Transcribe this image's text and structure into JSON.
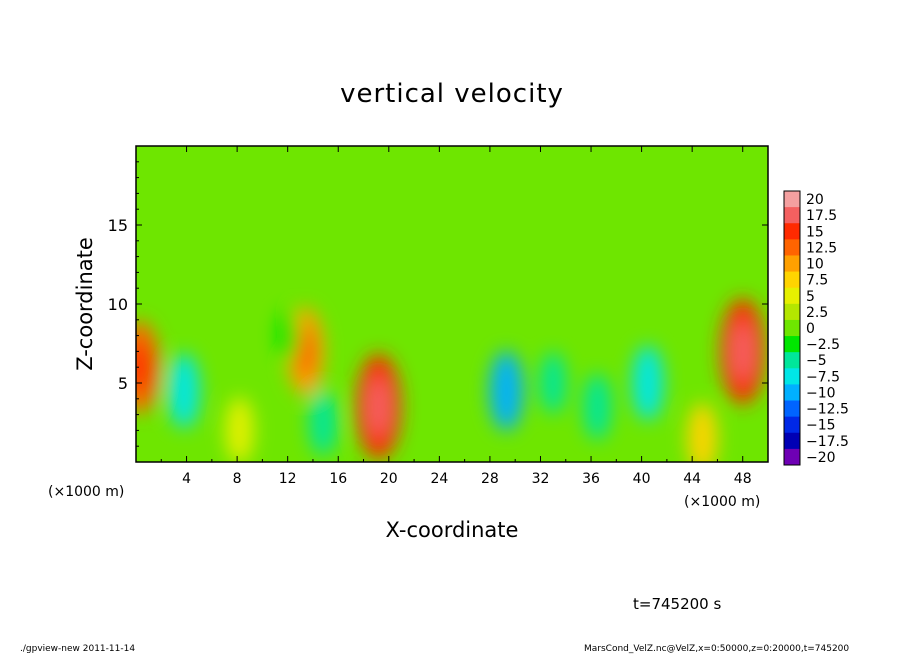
{
  "chart_data": {
    "type": "heatmap",
    "title": "vertical velocity",
    "xlabel": "X-coordinate",
    "ylabel": "Z-coordinate",
    "x_unit": "(×1000 m)",
    "y_unit": "(×1000 m)",
    "xlim": [
      0,
      50
    ],
    "ylim": [
      0,
      20
    ],
    "x_ticks": [
      "4",
      "8",
      "12",
      "16",
      "20",
      "24",
      "28",
      "32",
      "36",
      "40",
      "44",
      "48"
    ],
    "y_ticks": [
      "5",
      "10",
      "15"
    ],
    "colorbar_labels": [
      "20",
      "17.5",
      "15",
      "12.5",
      "10",
      "7.5",
      "5",
      "2.5",
      "0",
      "−2.5",
      "−5",
      "−7.5",
      "−10",
      "−12.5",
      "−15",
      "−17.5",
      "−20"
    ],
    "colorbar_colors": [
      "#f4a0a0",
      "#f46060",
      "#ff2a00",
      "#ff6400",
      "#ffa000",
      "#ffd400",
      "#e6f000",
      "#b4e600",
      "#6ee600",
      "#00e600",
      "#00e69a",
      "#00e6e6",
      "#00b0ff",
      "#0064ff",
      "#0028e6",
      "#0000b4",
      "#6e00b4"
    ],
    "background_value": -1,
    "features": [
      {
        "x": 0.3,
        "z": 6.0,
        "value": 12
      },
      {
        "x": 3.8,
        "z": 4.5,
        "value": -8
      },
      {
        "x": 8.2,
        "z": 2.0,
        "value": 6
      },
      {
        "x": 13.4,
        "z": 7.0,
        "value": 11
      },
      {
        "x": 14.8,
        "z": 2.5,
        "value": -6
      },
      {
        "x": 19.2,
        "z": 3.5,
        "value": 15
      },
      {
        "x": 12.0,
        "z": 8.0,
        "value": -3
      },
      {
        "x": 29.3,
        "z": 4.5,
        "value": -9
      },
      {
        "x": 33.0,
        "z": 5.0,
        "value": -5
      },
      {
        "x": 36.5,
        "z": 3.5,
        "value": -6
      },
      {
        "x": 40.5,
        "z": 5.0,
        "value": -8
      },
      {
        "x": 44.8,
        "z": 1.5,
        "value": 7
      },
      {
        "x": 48.0,
        "z": 7.0,
        "value": 15
      }
    ],
    "annotation_time": "t=745200 s"
  },
  "footer": {
    "left": "./gpview-new   2011-11-14",
    "right": "MarsCond_VelZ.nc@VelZ,x=0:50000,z=0:20000,t=745200"
  }
}
